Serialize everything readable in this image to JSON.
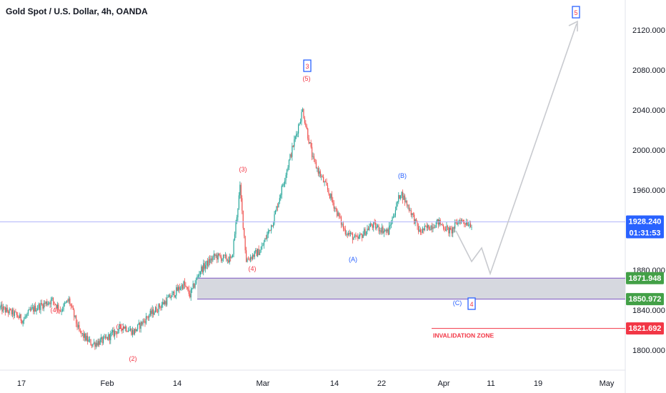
{
  "header": {
    "title": "Gold Spot / U.S. Dollar, 4h, OANDA"
  },
  "colors": {
    "up": "#26a69a",
    "down": "#ef5350",
    "price_line": "#b2b5fa",
    "zone_fill": "#d1d4dc",
    "zone_border": "#7e57c2",
    "invalidation": "#f23645",
    "wave_red": "#f23645",
    "wave_blue": "#2962ff",
    "projection": "#c8cacf",
    "tag_green": "#43a047",
    "tag_price": "#2962ff",
    "tag_red": "#f23645"
  },
  "chart_data": {
    "type": "candlestick",
    "y_ticks": [
      "2120.000",
      "2080.000",
      "2040.000",
      "2000.000",
      "1960.000",
      "1880.000",
      "1840.000",
      "1800.000"
    ],
    "y_range": [
      1780,
      2150
    ],
    "x_ticks": [
      "17",
      "Feb",
      "14",
      "Mar",
      "14",
      "22",
      "Apr",
      "11",
      "19",
      "May"
    ],
    "last_price": {
      "value": 1928.24,
      "label": "1928.240",
      "countdown": "01:31:53"
    },
    "zone": {
      "top": 1871.948,
      "bottom": 1850.972,
      "top_label": "1871.948",
      "bottom_label": "1850.972"
    },
    "invalidation": {
      "value": 1821.692,
      "label": "1821.692",
      "text": "INVALIDATION ZONE"
    },
    "series": [
      {
        "name": "price",
        "keypoints": [
          {
            "i": 0,
            "p": 1842
          },
          {
            "i": 14,
            "p": 1836
          },
          {
            "i": 22,
            "p": 1830
          },
          {
            "i": 30,
            "p": 1840
          },
          {
            "i": 42,
            "p": 1846
          },
          {
            "i": 50,
            "p": 1850
          },
          {
            "i": 58,
            "p": 1840
          },
          {
            "i": 66,
            "p": 1850
          },
          {
            "i": 76,
            "p": 1818
          },
          {
            "i": 88,
            "p": 1806
          },
          {
            "i": 100,
            "p": 1810
          },
          {
            "i": 118,
            "p": 1824
          },
          {
            "i": 128,
            "p": 1818
          },
          {
            "i": 142,
            "p": 1834
          },
          {
            "i": 160,
            "p": 1850
          },
          {
            "i": 176,
            "p": 1866
          },
          {
            "i": 182,
            "p": 1855
          },
          {
            "i": 192,
            "p": 1880
          },
          {
            "i": 206,
            "p": 1894
          },
          {
            "i": 222,
            "p": 1890
          },
          {
            "i": 230,
            "p": 1962
          },
          {
            "i": 236,
            "p": 1890
          },
          {
            "i": 250,
            "p": 1900
          },
          {
            "i": 262,
            "p": 1930
          },
          {
            "i": 276,
            "p": 1985
          },
          {
            "i": 290,
            "p": 2040
          },
          {
            "i": 300,
            "p": 1990
          },
          {
            "i": 314,
            "p": 1960
          },
          {
            "i": 330,
            "p": 1920
          },
          {
            "i": 342,
            "p": 1910
          },
          {
            "i": 356,
            "p": 1925
          },
          {
            "i": 372,
            "p": 1918
          },
          {
            "i": 384,
            "p": 1958
          },
          {
            "i": 394,
            "p": 1938
          },
          {
            "i": 402,
            "p": 1918
          },
          {
            "i": 420,
            "p": 1928
          },
          {
            "i": 432,
            "p": 1918
          },
          {
            "i": 440,
            "p": 1930
          },
          {
            "i": 452,
            "p": 1926
          }
        ]
      }
    ]
  },
  "waves": [
    {
      "label": "(1)",
      "color": "red"
    },
    {
      "label": "(2)",
      "color": "red"
    },
    {
      "label": "(3)",
      "color": "red"
    },
    {
      "label": "(4)",
      "color": "red"
    },
    {
      "label": "(4)",
      "color": "red"
    },
    {
      "label": "(5)",
      "color": "red"
    },
    {
      "label": "(A)",
      "color": "blue"
    },
    {
      "label": "(B)",
      "color": "blue"
    },
    {
      "label": "(C)",
      "color": "blue"
    }
  ],
  "boxed_waves": [
    {
      "label": "3"
    },
    {
      "label": "4"
    },
    {
      "label": "5"
    }
  ]
}
